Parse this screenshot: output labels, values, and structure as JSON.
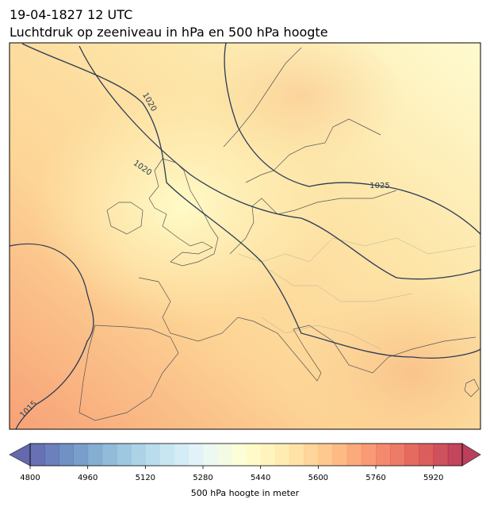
{
  "header": {
    "title": "19-04-1827 12 UTC",
    "subtitle": "Luchtdruk op zeeniveau in hPa en 500 hPa hoogte"
  },
  "map": {
    "contour_labels": [
      "1020",
      "1020",
      "1025",
      "1015"
    ]
  },
  "colorbar": {
    "label": "500 hPa hoogte in meter",
    "range": [
      4800,
      6000
    ],
    "step": 40,
    "ticks": [
      4800,
      4960,
      5120,
      5280,
      5440,
      5600,
      5760,
      5920
    ],
    "cmap": [
      "#313695",
      "#4575b4",
      "#74add1",
      "#abd9e9",
      "#e0f3f8",
      "#ffffbf",
      "#fee090",
      "#fdae61",
      "#f46d43",
      "#d73027",
      "#a50026"
    ]
  }
}
